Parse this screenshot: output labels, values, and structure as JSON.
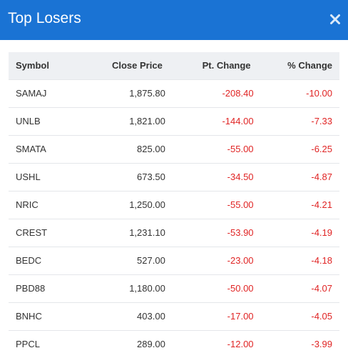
{
  "header": {
    "title": "Top Losers",
    "close_icon": "close-icon"
  },
  "colors": {
    "header_bg": "#1a73d4",
    "negative": "#e02424",
    "table_header_bg": "#eef0f3"
  },
  "table": {
    "columns": [
      "Symbol",
      "Close Price",
      "Pt. Change",
      "% Change"
    ],
    "rows": [
      {
        "symbol": "SAMAJ",
        "close": "1,875.80",
        "pt": "-208.40",
        "pct": "-10.00"
      },
      {
        "symbol": "UNLB",
        "close": "1,821.00",
        "pt": "-144.00",
        "pct": "-7.33"
      },
      {
        "symbol": "SMATA",
        "close": "825.00",
        "pt": "-55.00",
        "pct": "-6.25"
      },
      {
        "symbol": "USHL",
        "close": "673.50",
        "pt": "-34.50",
        "pct": "-4.87"
      },
      {
        "symbol": "NRIC",
        "close": "1,250.00",
        "pt": "-55.00",
        "pct": "-4.21"
      },
      {
        "symbol": "CREST",
        "close": "1,231.10",
        "pt": "-53.90",
        "pct": "-4.19"
      },
      {
        "symbol": "BEDC",
        "close": "527.00",
        "pt": "-23.00",
        "pct": "-4.18"
      },
      {
        "symbol": "PBD88",
        "close": "1,180.00",
        "pt": "-50.00",
        "pct": "-4.07"
      },
      {
        "symbol": "BNHC",
        "close": "403.00",
        "pt": "-17.00",
        "pct": "-4.05"
      },
      {
        "symbol": "PPCL",
        "close": "289.00",
        "pt": "-12.00",
        "pct": "-3.99"
      }
    ]
  }
}
